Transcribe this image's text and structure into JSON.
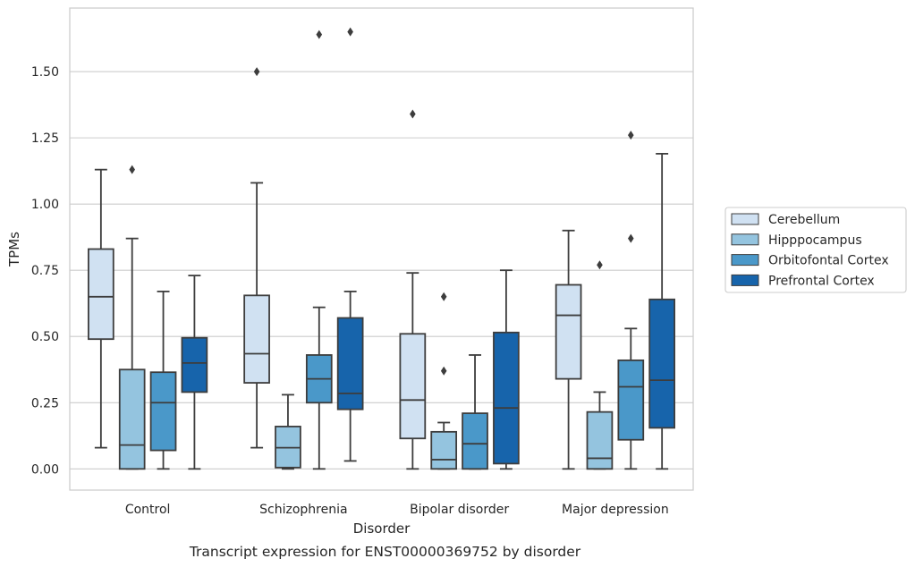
{
  "chart_data": {
    "type": "box",
    "title": "",
    "caption": "Transcript expression for ENST00000369752 by disorder",
    "xlabel": "Disorder",
    "ylabel": "TPMs",
    "ylim": [
      -0.08,
      1.74
    ],
    "yticks": [
      "0.00",
      "0.25",
      "0.50",
      "0.75",
      "1.00",
      "1.25",
      "1.50"
    ],
    "grid": "horizontal",
    "legend_position": "right",
    "categories": [
      "Control",
      "Schizophrenia",
      "Bipolar disorder",
      "Major depression"
    ],
    "series": [
      {
        "name": "Cerebellum",
        "color": "#d0e1f2",
        "boxes": [
          {
            "whisker_low": 0.08,
            "q1": 0.49,
            "median": 0.65,
            "q3": 0.83,
            "whisker_high": 1.13,
            "outliers": []
          },
          {
            "whisker_low": 0.08,
            "q1": 0.325,
            "median": 0.435,
            "q3": 0.655,
            "whisker_high": 1.08,
            "outliers": [
              1.5
            ]
          },
          {
            "whisker_low": 0.0,
            "q1": 0.115,
            "median": 0.26,
            "q3": 0.51,
            "whisker_high": 0.74,
            "outliers": [
              1.34
            ]
          },
          {
            "whisker_low": 0.0,
            "q1": 0.34,
            "median": 0.58,
            "q3": 0.695,
            "whisker_high": 0.9,
            "outliers": []
          }
        ]
      },
      {
        "name": "Hipppocampus",
        "color": "#94c4df",
        "boxes": [
          {
            "whisker_low": 0.0,
            "q1": 0.0,
            "median": 0.09,
            "q3": 0.375,
            "whisker_high": 0.87,
            "outliers": [
              1.13
            ]
          },
          {
            "whisker_low": 0.0,
            "q1": 0.005,
            "median": 0.08,
            "q3": 0.16,
            "whisker_high": 0.28,
            "outliers": []
          },
          {
            "whisker_low": 0.0,
            "q1": 0.0,
            "median": 0.035,
            "q3": 0.14,
            "whisker_high": 0.175,
            "outliers": [
              0.37,
              0.65
            ]
          },
          {
            "whisker_low": 0.0,
            "q1": 0.0,
            "median": 0.04,
            "q3": 0.215,
            "whisker_high": 0.29,
            "outliers": [
              0.77
            ]
          }
        ]
      },
      {
        "name": "Orbitofontal Cortex",
        "color": "#4a98c9",
        "boxes": [
          {
            "whisker_low": 0.0,
            "q1": 0.07,
            "median": 0.25,
            "q3": 0.365,
            "whisker_high": 0.67,
            "outliers": []
          },
          {
            "whisker_low": 0.0,
            "q1": 0.25,
            "median": 0.34,
            "q3": 0.43,
            "whisker_high": 0.61,
            "outliers": [
              1.64
            ]
          },
          {
            "whisker_low": 0.0,
            "q1": 0.0,
            "median": 0.095,
            "q3": 0.21,
            "whisker_high": 0.43,
            "outliers": []
          },
          {
            "whisker_low": 0.0,
            "q1": 0.11,
            "median": 0.31,
            "q3": 0.41,
            "whisker_high": 0.53,
            "outliers": [
              0.87,
              1.26
            ]
          }
        ]
      },
      {
        "name": "Prefrontal Cortex",
        "color": "#1764ab",
        "boxes": [
          {
            "whisker_low": 0.0,
            "q1": 0.29,
            "median": 0.4,
            "q3": 0.495,
            "whisker_high": 0.73,
            "outliers": []
          },
          {
            "whisker_low": 0.03,
            "q1": 0.225,
            "median": 0.285,
            "q3": 0.57,
            "whisker_high": 0.67,
            "outliers": [
              1.65
            ]
          },
          {
            "whisker_low": 0.0,
            "q1": 0.02,
            "median": 0.23,
            "q3": 0.515,
            "whisker_high": 0.75,
            "outliers": []
          },
          {
            "whisker_low": 0.0,
            "q1": 0.155,
            "median": 0.335,
            "q3": 0.64,
            "whisker_high": 1.19,
            "outliers": []
          }
        ]
      }
    ]
  }
}
